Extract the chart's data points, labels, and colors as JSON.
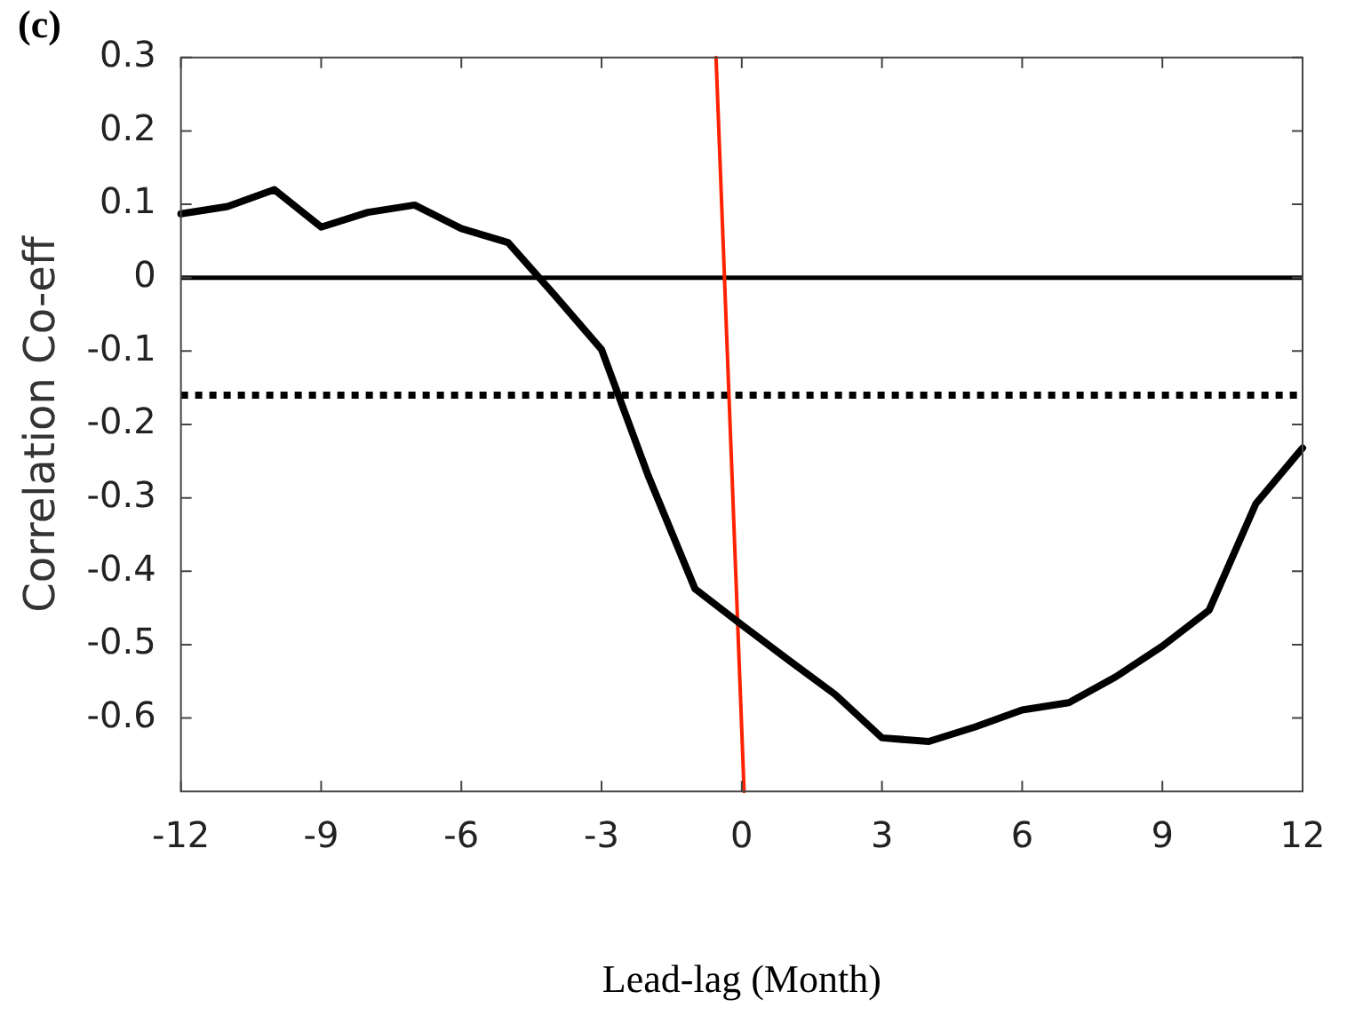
{
  "chart_data": {
    "type": "line",
    "title": "(c)",
    "xlabel": "Lead-lag (Month)",
    "ylabel": "Correlation Co-eff",
    "x": [
      -12,
      -11,
      -10,
      -9,
      -8,
      -7,
      -6,
      -5,
      -4,
      -3,
      -2,
      -1,
      0,
      1,
      2,
      3,
      4,
      5,
      6,
      7,
      8,
      9,
      10,
      11,
      12
    ],
    "series": [
      {
        "color": "#000000",
        "values": [
          0.087,
          0.097,
          0.12,
          0.069,
          0.089,
          0.099,
          0.067,
          0.048,
          -0.024,
          -0.098,
          -0.27,
          -0.424,
          -0.473,
          -0.521,
          -0.568,
          -0.627,
          -0.632,
          -0.612,
          -0.589,
          -0.579,
          -0.544,
          -0.502,
          -0.453,
          -0.308,
          -0.232
        ]
      },
      {
        "color": "#ff2200",
        "x": [
          -0.55,
          0.05
        ],
        "values": [
          0.3,
          -0.7
        ]
      }
    ],
    "xlim": [
      -12,
      12
    ],
    "xticks": [
      -12,
      -9,
      -6,
      -3,
      0,
      3,
      6,
      9,
      12
    ],
    "ylim": [
      -0.7,
      0.3
    ],
    "yticks": [
      0.3,
      0.2,
      0.1,
      0,
      -0.1,
      -0.2,
      -0.3,
      -0.4,
      -0.5,
      -0.6
    ],
    "ref_lines": [
      {
        "axis": "y",
        "value": 0,
        "color": "#000000",
        "line_style": "solid"
      },
      {
        "axis": "y",
        "value": -0.16,
        "color": "#000000",
        "line_style": "dotted"
      }
    ],
    "grid": false,
    "legend": false,
    "marker": "none",
    "line_style": "solid"
  }
}
